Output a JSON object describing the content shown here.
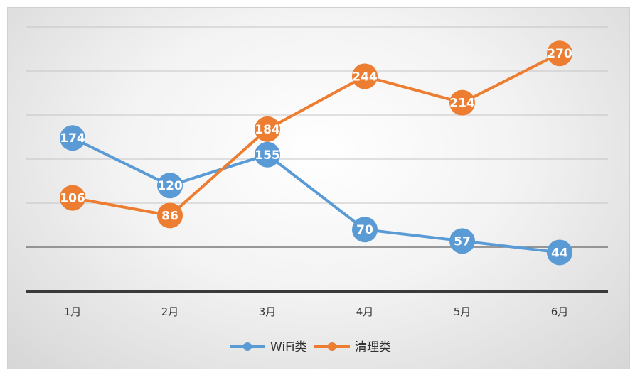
{
  "chart_data": {
    "type": "line",
    "title": "",
    "xlabel": "",
    "ylabel": "",
    "categories": [
      "1月",
      "2月",
      "3月",
      "4月",
      "5月",
      "6月"
    ],
    "ylim": [
      0,
      300
    ],
    "grid": true,
    "legend_position": "bottom",
    "series": [
      {
        "name": "WiFi类",
        "color": "#5b9bd5",
        "values": [
          174,
          120,
          155,
          70,
          57,
          44
        ]
      },
      {
        "name": "清理类",
        "color": "#ed7d31",
        "values": [
          106,
          86,
          184,
          244,
          214,
          270
        ]
      }
    ]
  }
}
